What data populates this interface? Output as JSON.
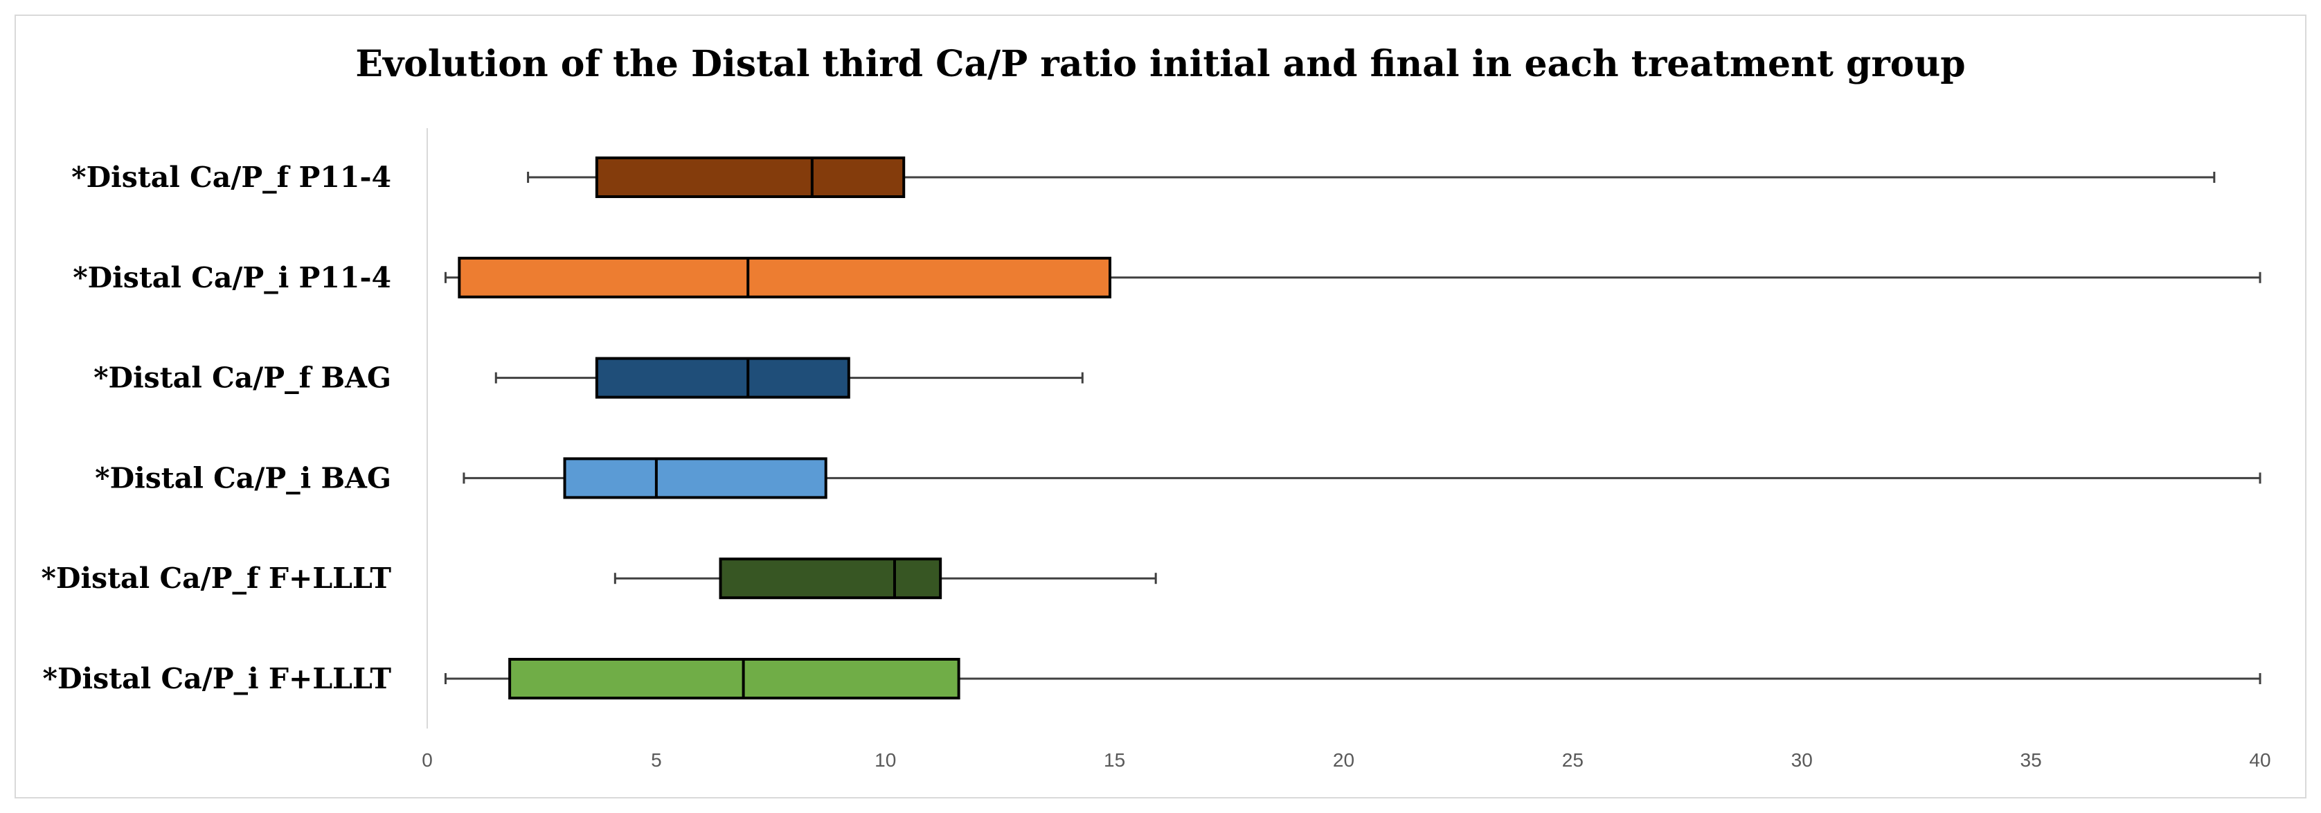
{
  "chart_data": {
    "type": "boxplot",
    "title": "Evolution of the Distal third Ca/P ratio initial and final in each treatment group",
    "xlabel": "",
    "ylabel": "",
    "xlim": [
      0,
      40
    ],
    "x_ticks": [
      0,
      5,
      10,
      15,
      20,
      25,
      30,
      35,
      40
    ],
    "grid": false,
    "legend": "none",
    "series": [
      {
        "label": "*Distal Ca/P_f P11-4",
        "color": "#843c0c",
        "min": 2.2,
        "q1": 3.7,
        "median": 8.4,
        "q3": 10.4,
        "max": 39.0
      },
      {
        "label": "*Distal Ca/P_i P11-4",
        "color": "#ed7d31",
        "min": 0.4,
        "q1": 0.7,
        "median": 7.0,
        "q3": 14.9,
        "max": 40.0
      },
      {
        "label": "*Distal Ca/P_f BAG",
        "color": "#1f4e79",
        "min": 1.5,
        "q1": 3.7,
        "median": 7.0,
        "q3": 9.2,
        "max": 14.3
      },
      {
        "label": "*Distal Ca/P_i BAG",
        "color": "#5b9bd5",
        "min": 0.8,
        "q1": 3.0,
        "median": 5.0,
        "q3": 8.7,
        "max": 40.0
      },
      {
        "label": "*Distal Ca/P_f F+LLLT",
        "color": "#375623",
        "min": 4.1,
        "q1": 6.4,
        "median": 10.2,
        "q3": 11.2,
        "max": 15.9
      },
      {
        "label": "*Distal Ca/P_i F+LLLT",
        "color": "#70ad47",
        "min": 0.4,
        "q1": 1.8,
        "median": 6.9,
        "q3": 11.6,
        "max": 40.0
      }
    ]
  }
}
